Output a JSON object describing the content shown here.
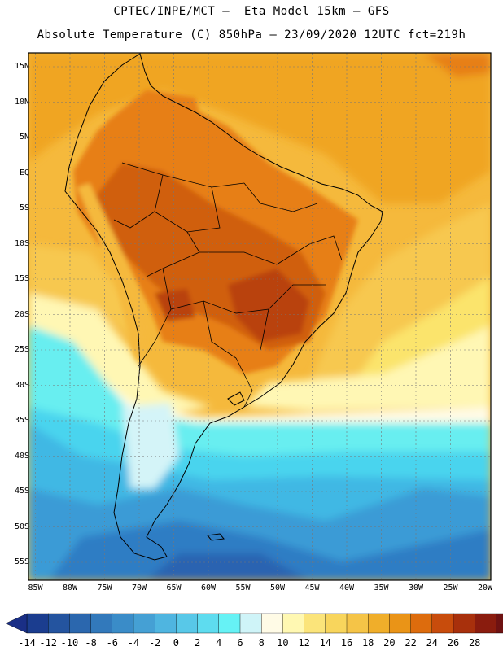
{
  "header": {
    "line1": "CPTEC/INPE/MCT –  Eta Model 15km – GFS",
    "line2": "Absolute Temperature (C) 850hPa – 23/09/2020 12UTC fct=219h"
  },
  "map": {
    "lat_labels": [
      "15N",
      "10N",
      "5N",
      "EQ",
      "5S",
      "10S",
      "15S",
      "20S",
      "25S",
      "30S",
      "35S",
      "40S",
      "45S",
      "50S",
      "55S"
    ],
    "lon_labels": [
      "85W",
      "80W",
      "75W",
      "70W",
      "65W",
      "60W",
      "55W",
      "50W",
      "45W",
      "40W",
      "35W",
      "30W",
      "25W",
      "20W"
    ],
    "lat_range": [
      -58,
      16.5
    ],
    "lon_range": [
      -86,
      -19.5
    ],
    "colors": {
      "t_26": "#b9420f",
      "t_24": "#d05e10",
      "t_22": "#e77f12",
      "t_20": "#f0a524",
      "t_18": "#f5b93c",
      "t_16": "#f7c850",
      "t_12": "#fbe46c",
      "t_8": "#fff7b4",
      "t_6": "#fffbe6",
      "t_4": "#d4f4f8",
      "t_2": "#68eef0",
      "t_0": "#4ad4ee",
      "t_m2": "#3fb8e4",
      "t_m4": "#3a9bd6",
      "t_m6": "#2f7dc4",
      "t_m8": "#2a64b1"
    }
  },
  "colorbar": {
    "labels": [
      "-14",
      "-12",
      "-10",
      "-8",
      "-6",
      "-4",
      "-2",
      "0",
      "2",
      "4",
      "6",
      "8",
      "10",
      "12",
      "14",
      "16",
      "18",
      "20",
      "22",
      "24",
      "26",
      "28"
    ],
    "colors": [
      "#1b3d8f",
      "#24549f",
      "#2b67ae",
      "#3279bb",
      "#3a8cc8",
      "#45a0d4",
      "#4fb5e0",
      "#58c8e8",
      "#5edcef",
      "#66f2f5",
      "#cff4f8",
      "#fffbe6",
      "#fff8b2",
      "#fbe47a",
      "#f8d55c",
      "#f5c447",
      "#f0ae2a",
      "#ea9417",
      "#dd6c0d",
      "#c84c0c",
      "#a8300c",
      "#8a1c0e",
      "#6e1212"
    ],
    "left_arrow_color": "#1a2f86",
    "right_arrow_color": "#6a0b1c"
  }
}
